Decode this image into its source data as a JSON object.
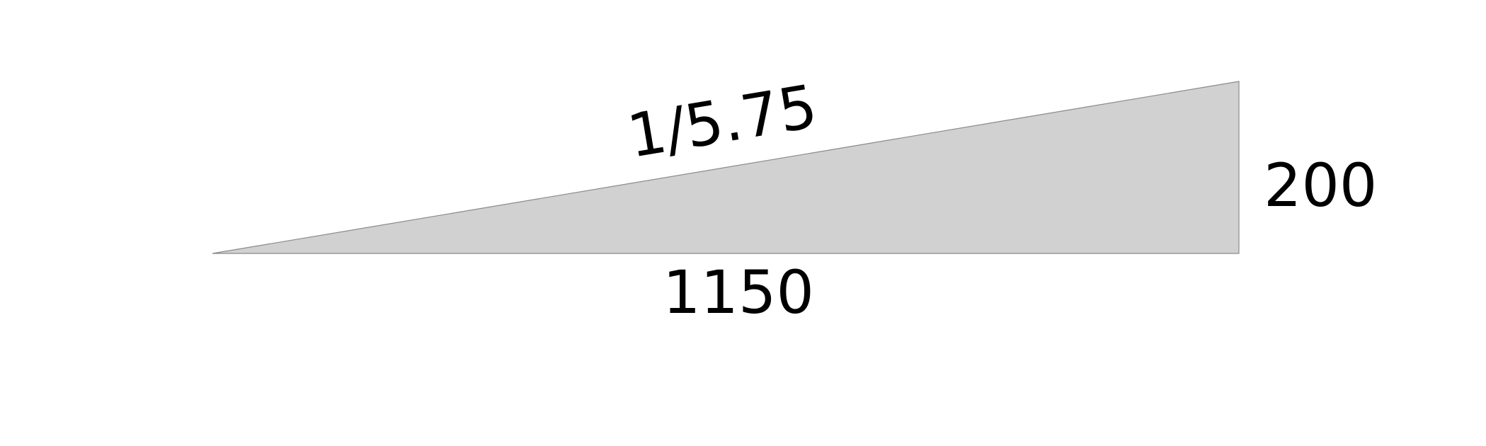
{
  "ramp": {
    "run_label": "1150",
    "rise_label": "200",
    "slope_label": "1/5.75",
    "fill_color": "#d1d1d1",
    "edge_color": "#8a8a8a"
  }
}
